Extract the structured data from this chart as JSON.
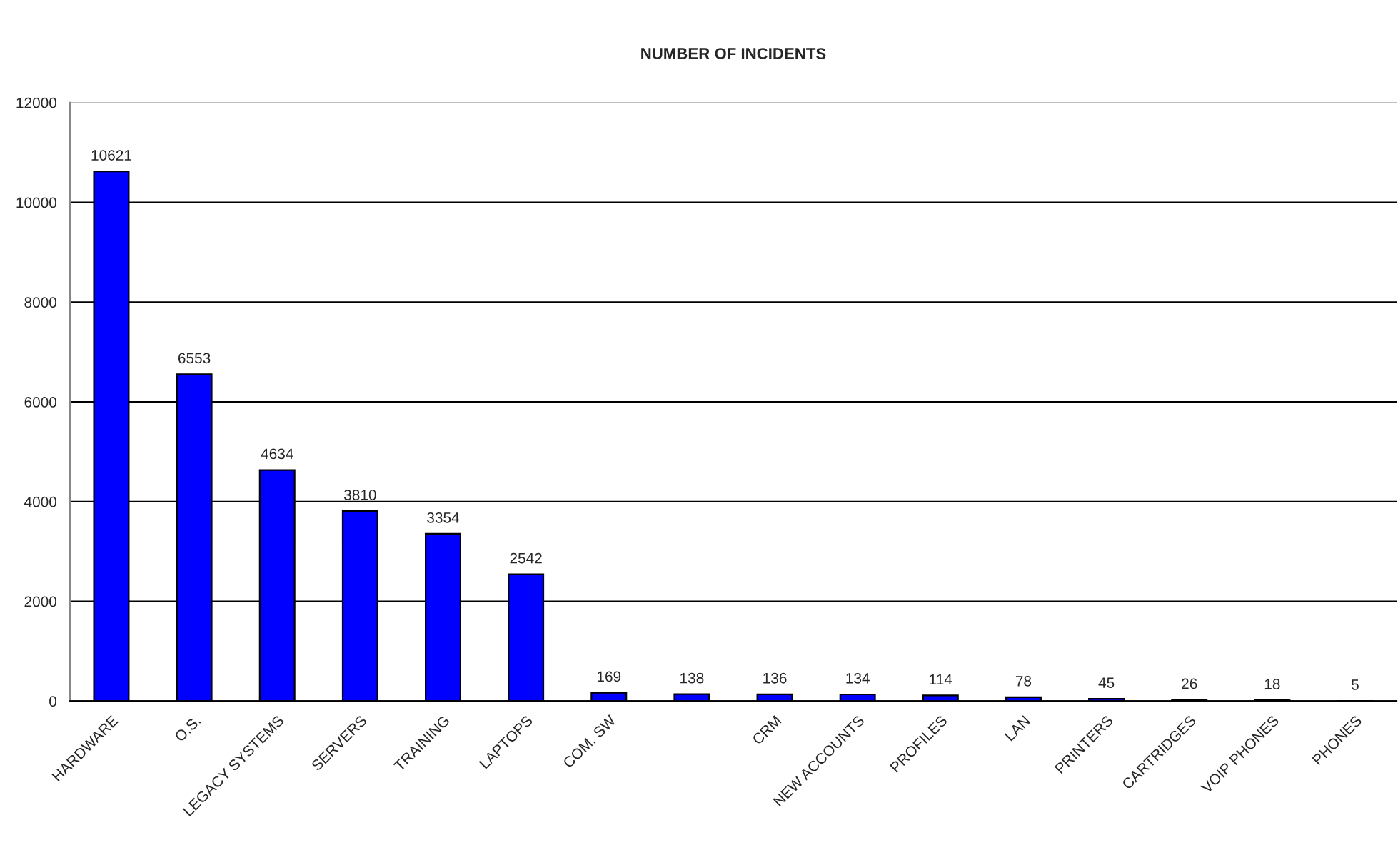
{
  "chart_data": {
    "type": "bar",
    "title": "NUMBER OF INCIDENTS",
    "categories": [
      "HARDWARE",
      "O.S.",
      "LEGACY SYSTEMS",
      "SERVERS",
      "TRAINING",
      "LAPTOPS",
      "COM. SW",
      null,
      "CRM",
      "NEW ACCOUNTS",
      "PROFILES",
      "LAN",
      "PRINTERS",
      "CARTRIDGES",
      "VOIP PHONES",
      "PHONES"
    ],
    "values": [
      10621,
      6553,
      4634,
      3810,
      3354,
      2542,
      169,
      138,
      136,
      134,
      114,
      78,
      45,
      26,
      18,
      5
    ],
    "color": "#0000ff",
    "ylim": [
      0,
      12000
    ],
    "yticks": [
      0,
      2000,
      4000,
      6000,
      8000,
      10000,
      12000
    ],
    "grid": "y",
    "data_labels": true
  }
}
